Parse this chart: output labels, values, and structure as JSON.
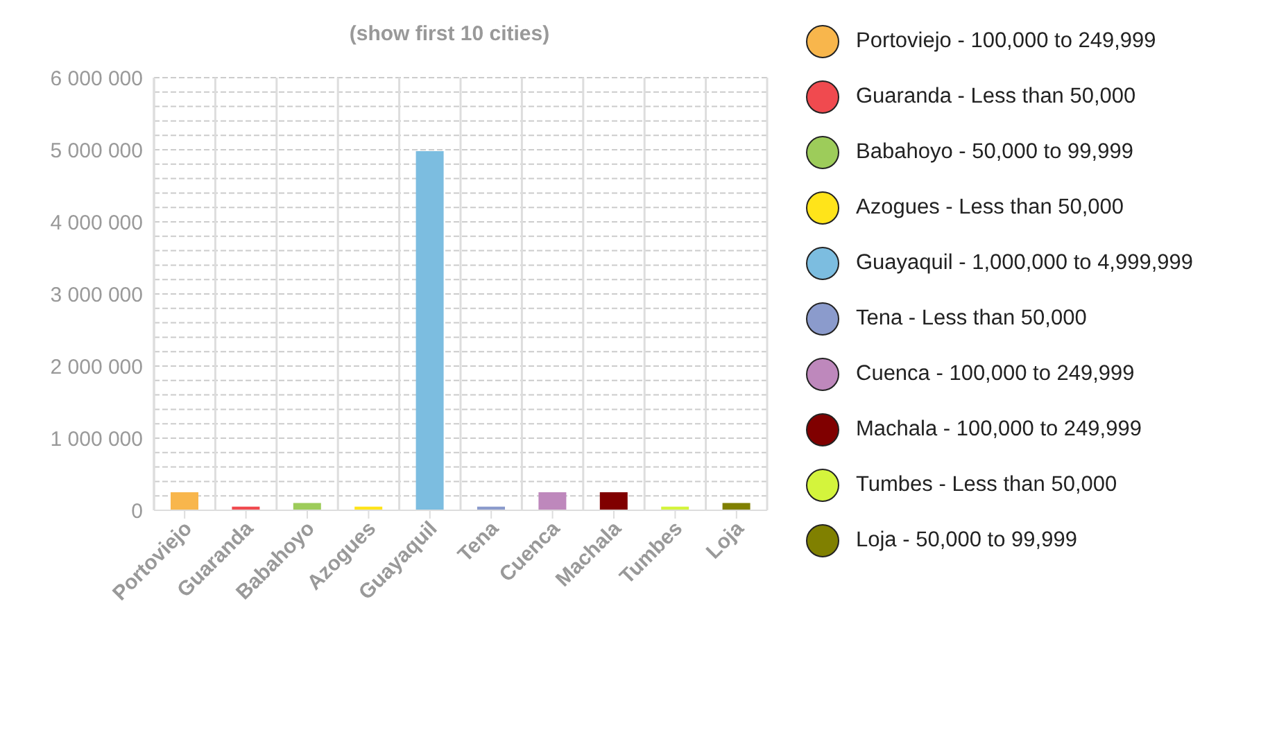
{
  "chart_data": {
    "type": "bar",
    "title": "(show first 10 cities)",
    "categories": [
      "Portoviejo",
      "Guaranda",
      "Babahoyo",
      "Azogues",
      "Guayaquil",
      "Tena",
      "Cuenca",
      "Machala",
      "Tumbes",
      "Loja"
    ],
    "stacked": true,
    "series": [
      {
        "name": "Portoviejo - 100,000 to 249,999",
        "color": "#f8b64c",
        "values": [
          250000,
          null,
          null,
          null,
          null,
          null,
          null,
          null,
          null,
          null
        ]
      },
      {
        "name": "Guaranda - Less than 50,000",
        "color": "#f04a4f",
        "values": [
          null,
          50000,
          null,
          null,
          null,
          null,
          null,
          null,
          null,
          null
        ]
      },
      {
        "name": "Babahoyo - 50,000 to 99,999",
        "color": "#9dcc5a",
        "values": [
          null,
          null,
          100000,
          null,
          null,
          null,
          null,
          null,
          null,
          null
        ]
      },
      {
        "name": "Azogues - Less than 50,000",
        "color": "#ffe41a",
        "values": [
          null,
          null,
          null,
          50000,
          null,
          null,
          null,
          null,
          null,
          null
        ]
      },
      {
        "name": "Guayaquil - 1,000,000 to 4,999,999",
        "color": "#7cbde0",
        "values": [
          null,
          null,
          null,
          null,
          4980000,
          null,
          null,
          null,
          null,
          null
        ]
      },
      {
        "name": "Tena - Less than 50,000",
        "color": "#8b9bcc",
        "values": [
          null,
          null,
          null,
          null,
          null,
          50000,
          null,
          null,
          null,
          null
        ]
      },
      {
        "name": "Cuenca - 100,000 to 249,999",
        "color": "#be88bc",
        "values": [
          null,
          null,
          null,
          null,
          null,
          null,
          250000,
          null,
          null,
          null
        ]
      },
      {
        "name": "Machala - 100,000 to 249,999",
        "color": "#800000",
        "values": [
          null,
          null,
          null,
          null,
          null,
          null,
          null,
          250000,
          null,
          null
        ]
      },
      {
        "name": "Tumbes - Less than 50,000",
        "color": "#d4f43c",
        "values": [
          null,
          null,
          null,
          null,
          null,
          null,
          null,
          null,
          50000,
          null
        ]
      },
      {
        "name": "Loja - 50,000 to 99,999",
        "color": "#808000",
        "values": [
          null,
          null,
          null,
          null,
          null,
          null,
          null,
          null,
          null,
          100000
        ]
      }
    ],
    "ylim": [
      0,
      6000000
    ],
    "yticks": [
      0,
      {
        "value": 200000,
        "label": null
      },
      {
        "value": 400000,
        "label": null
      },
      {
        "value": 600000,
        "label": null
      },
      {
        "value": 800000,
        "label": null
      },
      {
        "value": 1000000,
        "label": "1 000 000"
      },
      {
        "value": 1200000,
        "label": null
      },
      {
        "value": 1400000,
        "label": null
      },
      {
        "value": 1600000,
        "label": null
      },
      {
        "value": 1800000,
        "label": null
      },
      {
        "value": 2000000,
        "label": "2 000 000"
      },
      {
        "value": 2200000,
        "label": null
      },
      {
        "value": 2400000,
        "label": null
      },
      {
        "value": 2600000,
        "label": null
      },
      {
        "value": 2800000,
        "label": null
      },
      {
        "value": 3000000,
        "label": "3 000 000"
      },
      {
        "value": 3200000,
        "label": null
      },
      {
        "value": 3400000,
        "label": null
      },
      {
        "value": 3600000,
        "label": null
      },
      {
        "value": 3800000,
        "label": null
      },
      {
        "value": 4000000,
        "label": "4 000 000"
      },
      {
        "value": 4200000,
        "label": null
      },
      {
        "value": 4400000,
        "label": null
      },
      {
        "value": 4600000,
        "label": null
      },
      {
        "value": 4800000,
        "label": null
      },
      {
        "value": 5000000,
        "label": "5 000 000"
      },
      {
        "value": 5200000,
        "label": null
      },
      {
        "value": 5400000,
        "label": null
      },
      {
        "value": 5600000,
        "label": null
      },
      {
        "value": 5800000,
        "label": null
      },
      {
        "value": 6000000,
        "label": "6 000 000"
      }
    ],
    "grid": true,
    "legend": "right"
  }
}
